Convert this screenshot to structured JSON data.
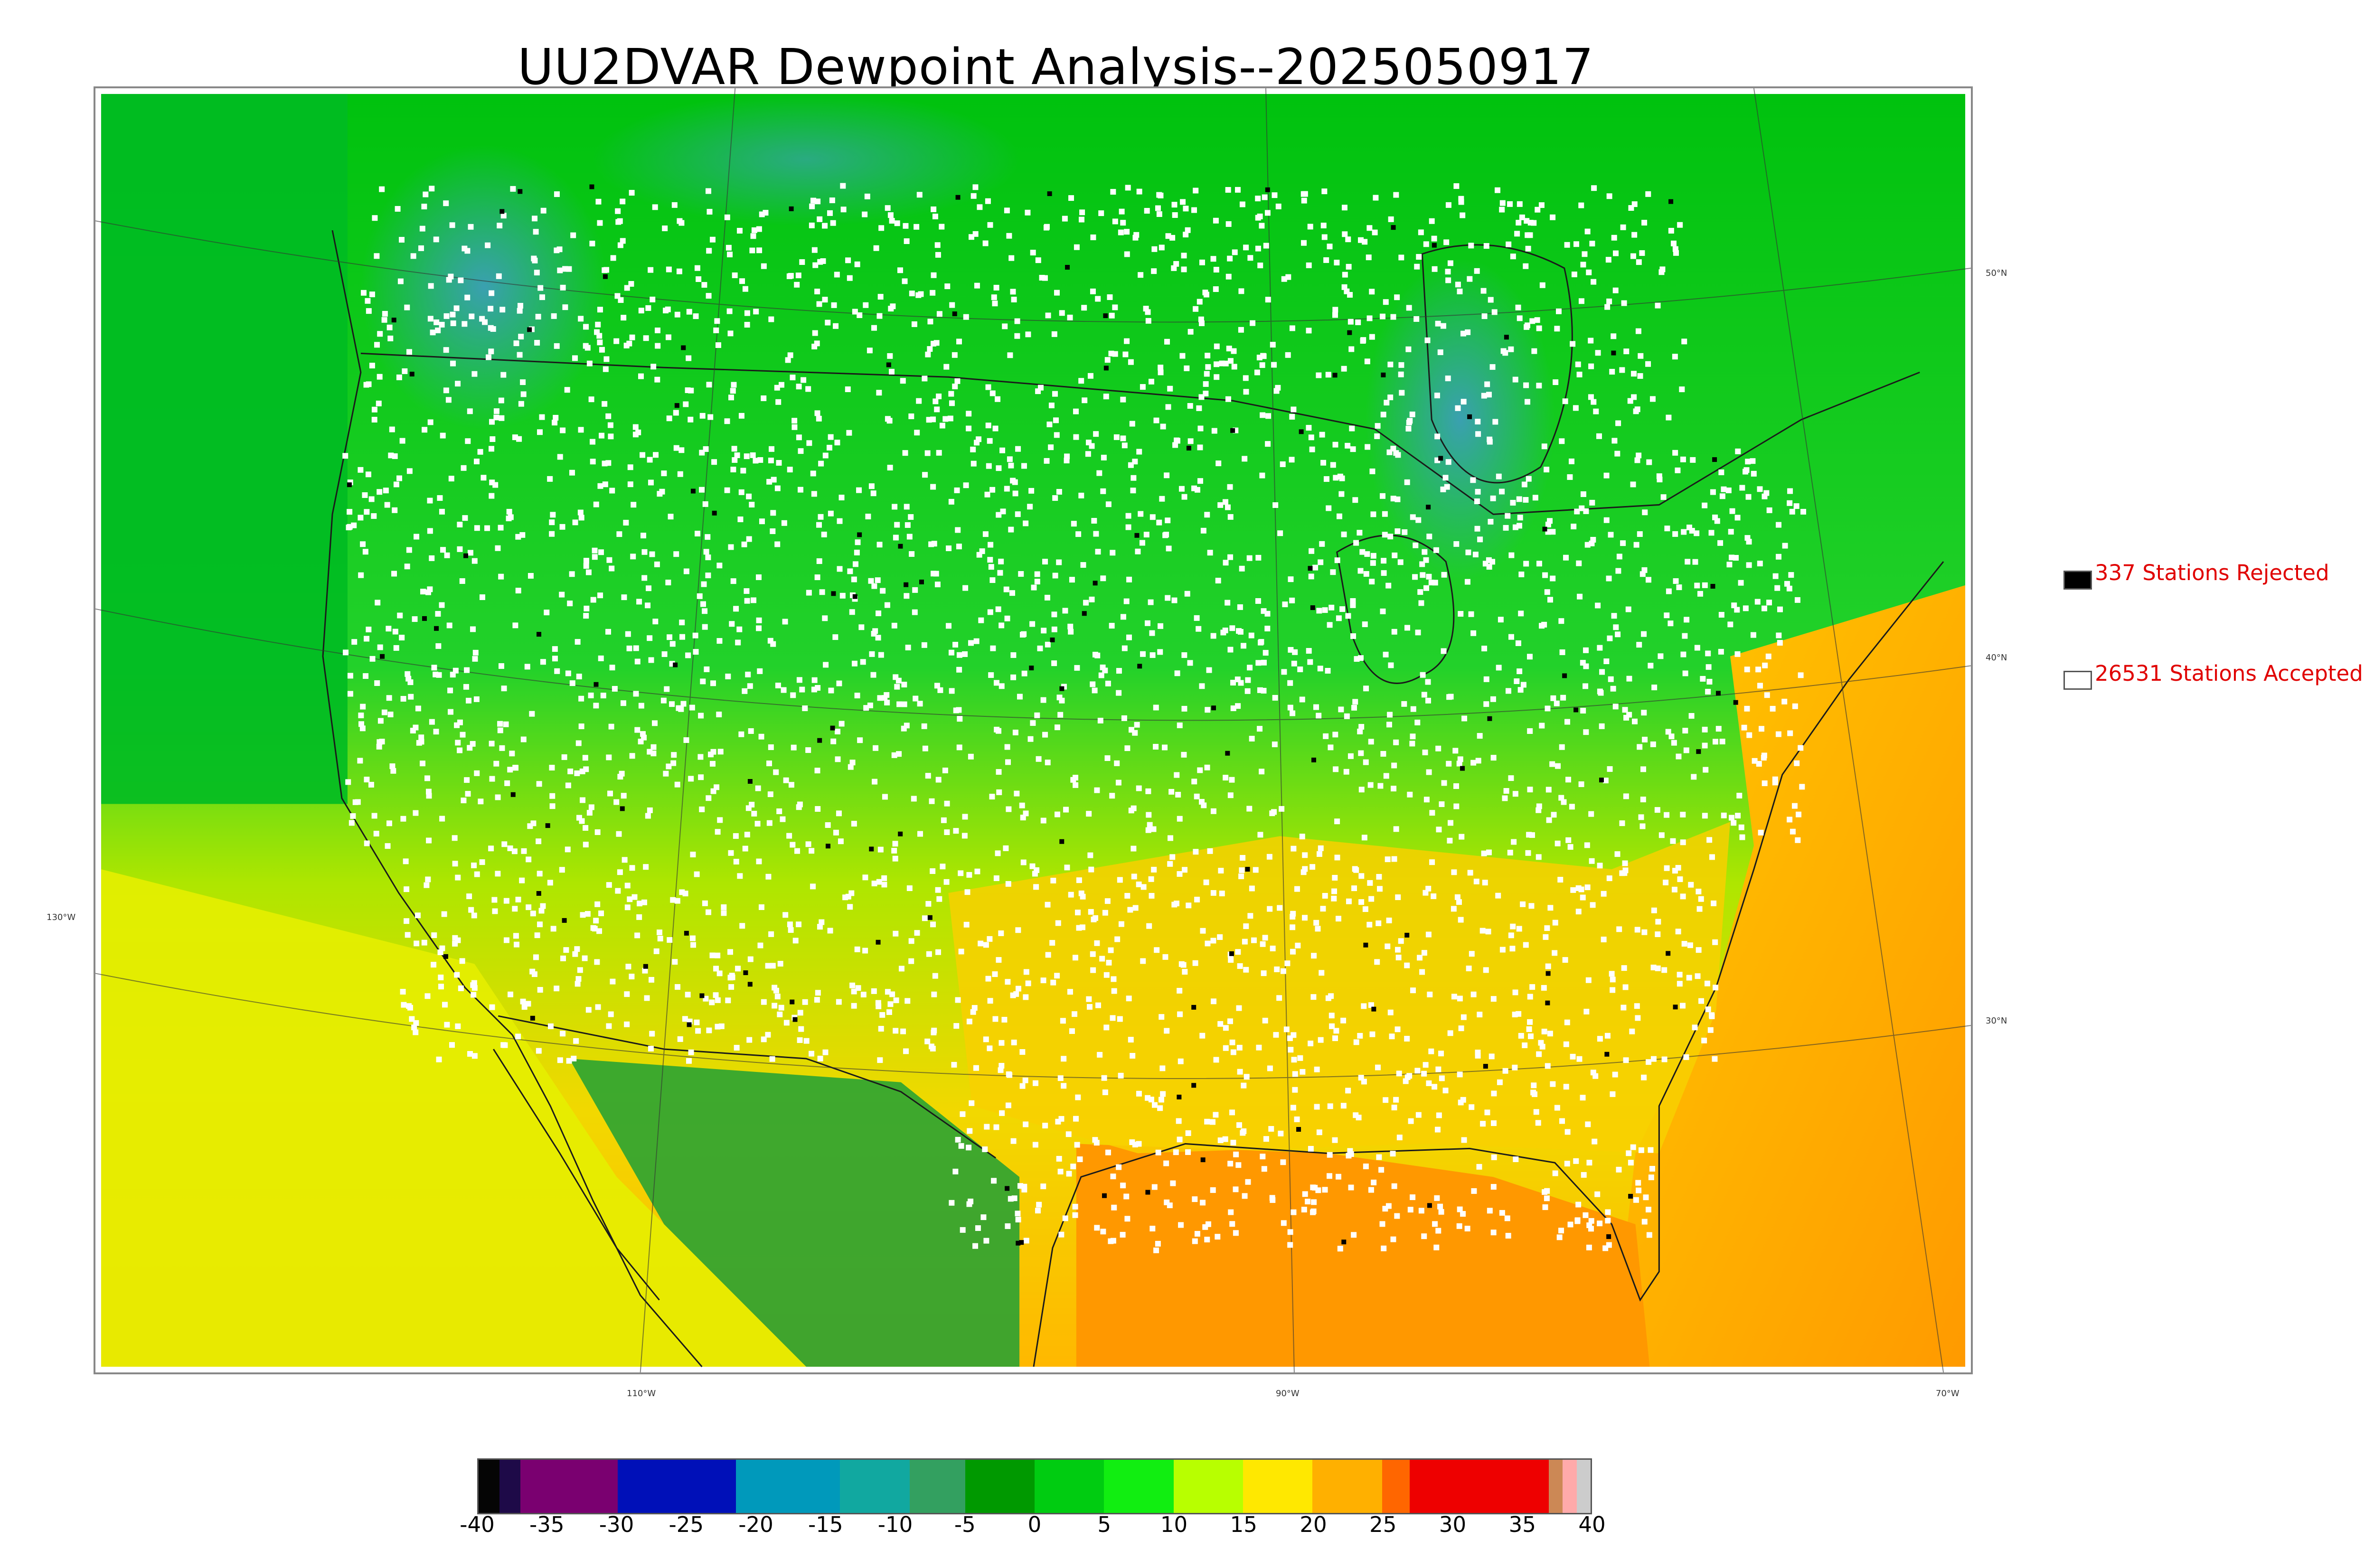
{
  "title": "UU2DVAR Dewpoint Analysis--2025050917",
  "legend": {
    "rejected": {
      "label": "337 Stations Rejected",
      "color": "#000000"
    },
    "accepted": {
      "label": "26531 Stations Accepted",
      "color": "#ffffff"
    }
  },
  "graticule": {
    "lat_labels": [
      "50°N",
      "40°N",
      "30°N"
    ],
    "lon_labels": [
      "130°W",
      "110°W",
      "90°W",
      "70°W"
    ]
  },
  "colorbar": {
    "ticks": [
      "-40",
      "-35",
      "-30",
      "-25",
      "-20",
      "-15",
      "-10",
      "-5",
      "0",
      "5",
      "10",
      "15",
      "20",
      "25",
      "30",
      "35",
      "40"
    ],
    "range": [
      -40,
      40
    ],
    "segments": [
      {
        "from": -40,
        "to": -38.5,
        "color": "#050505"
      },
      {
        "from": -38.5,
        "to": -37,
        "color": "#1e0a48"
      },
      {
        "from": -37,
        "to": -30,
        "color": "#7a0070"
      },
      {
        "from": -30,
        "to": -21.5,
        "color": "#0010b8"
      },
      {
        "from": -21.5,
        "to": -14,
        "color": "#0099bb"
      },
      {
        "from": -14,
        "to": -9,
        "color": "#11a8a0"
      },
      {
        "from": -9,
        "to": -5,
        "color": "#33a060"
      },
      {
        "from": -5,
        "to": 0,
        "color": "#009900"
      },
      {
        "from": 0,
        "to": 5,
        "color": "#00cc11"
      },
      {
        "from": 5,
        "to": 10,
        "color": "#11ee11"
      },
      {
        "from": 10,
        "to": 15,
        "color": "#b8ff00"
      },
      {
        "from": 15,
        "to": 20,
        "color": "#ffe800"
      },
      {
        "from": 20,
        "to": 25,
        "color": "#ffb000"
      },
      {
        "from": 25,
        "to": 27,
        "color": "#ff6600"
      },
      {
        "from": 27,
        "to": 37,
        "color": "#ee0000"
      },
      {
        "from": 37,
        "to": 38,
        "color": "#cc8855"
      },
      {
        "from": 38,
        "to": 39,
        "color": "#ffaaaa"
      },
      {
        "from": 39,
        "to": 40,
        "color": "#cccccc"
      }
    ]
  },
  "colors": {
    "land_north": "#00c414",
    "land_dry": "#12a832",
    "moist_south": "#ffd000",
    "gulf": "#ff9a00",
    "cold_plateau": "#3aa0a0"
  }
}
